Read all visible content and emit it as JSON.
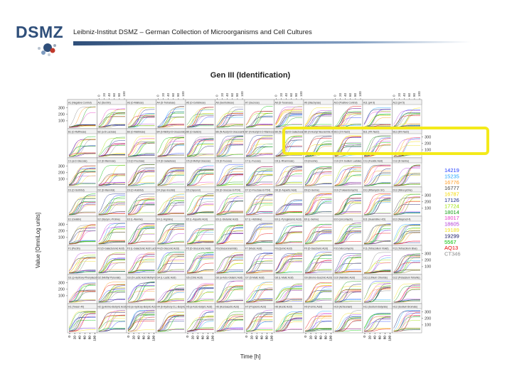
{
  "header": {
    "logo_text": "DSMZ",
    "institute": "Leibniz-Institut DSMZ – German Collection of Microorganisms and Cell Cultures"
  },
  "colors": {
    "logo_blue": "#2f4f7a",
    "logo_red": "#c0392b",
    "rule_blue": "#2f4f7a",
    "highlight": "#f4ea1a"
  },
  "chart_data": {
    "type": "line",
    "title": "Gen III (Identification)",
    "xlabel": "Time [h]",
    "ylabel": "Value [OmniLog units]",
    "x_ticks": [
      "0",
      "20",
      "40",
      "60",
      "80",
      "100"
    ],
    "y_ticks": [
      "100",
      "200",
      "300"
    ],
    "grid": {
      "rows": 8,
      "cols": 12
    },
    "legend_position": "right",
    "legend": [
      {
        "name": "14219",
        "color": "#1f3cff"
      },
      {
        "name": "15235",
        "color": "#1fa6ff"
      },
      {
        "name": "16776",
        "color": "#ff9a1f"
      },
      {
        "name": "16777",
        "color": "#444444"
      },
      {
        "name": "16787",
        "color": "#f5d800"
      },
      {
        "name": "17126",
        "color": "#1a2a8a"
      },
      {
        "name": "17724",
        "color": "#9be000"
      },
      {
        "name": "18014",
        "color": "#18a018"
      },
      {
        "name": "18017",
        "color": "#e63cc8"
      },
      {
        "name": "18605",
        "color": "#b23cd8"
      },
      {
        "name": "19189",
        "color": "#f0e020"
      },
      {
        "name": "19299",
        "color": "#101060"
      },
      {
        "name": "5567",
        "color": "#00c000"
      },
      {
        "name": "AQ13",
        "color": "#e60000"
      },
      {
        "name": "CT346",
        "color": "#8a8a8a"
      }
    ],
    "panel_labels": [
      "A1 (Negative Control)",
      "A2 (Dextrin)",
      "A3 (D-Maltose)",
      "A4 (D-Trehalose)",
      "A5 (D-Cellobiose)",
      "A6 (Gentiobiose)",
      "A7 (Sucrose)",
      "A8 (D-Turanose)",
      "A9 (Stachyose)",
      "A10 (Positive Control)",
      "A11 (pH 6)",
      "A12 (pH 5)",
      "B1 (D-Raffinose)",
      "B2 (a-D-Lactose)",
      "B3 (D-Melibiose)",
      "B4 (b-Methyl-D-Glucoside)",
      "B5 (D-Salicin)",
      "B6 (N-Acetyl-D-Glucosamine)",
      "B7 (N-Acetyl-b-D-Mannosamine)",
      "B8 (N-Acetyl-D-Galactosamine)",
      "B9 (N-Acetyl Neuraminic Acid)",
      "B10 (1% NaCl)",
      "B11 (4% NaCl)",
      "B12 (8% NaCl)",
      "C1 (a-D-Glucose)",
      "C2 (D-Mannose)",
      "C3 (D-Fructose)",
      "C4 (D-Galactose)",
      "C5 (3-Methyl Glucose)",
      "C6 (D-Fucose)",
      "C7 (L-Fucose)",
      "C8 (L-Rhamnose)",
      "C9 (Inosine)",
      "C10 (1% Sodium Lactate)",
      "C11 (Fusidic Acid)",
      "C12 (D-Serine)",
      "D1 (D-Sorbitol)",
      "D2 (D-Mannitol)",
      "D3 (D-Arabitol)",
      "D4 (myo-Inositol)",
      "D5 (Glycerol)",
      "D6 (D-Glucose-6-PO4)",
      "D7 (D-Fructose-6-PO4)",
      "D8 (D-Aspartic Acid)",
      "D9 (D-Serine)",
      "D10 (Troleandomycin)",
      "D11 (Rifamycin SV)",
      "D12 (Minocycline)",
      "E1 (Gelatin)",
      "E2 (Glycyl-L-Proline)",
      "E3 (L-Alanine)",
      "E4 (L-Arginine)",
      "E5 (L-Aspartic Acid)",
      "E6 (L-Glutamic Acid)",
      "E7 (L-Histidine)",
      "E8 (L-Pyroglutamic Acid)",
      "E9 (L-Serine)",
      "E10 (Lincomycin)",
      "E11 (Guanidine HCl)",
      "E12 (Niaproof 4)",
      "F1 (Pectin)",
      "F2 (D-Galacturonic Acid)",
      "F3 (L-Galactonic Acid Lactone)",
      "F4 (D-Gluconic Acid)",
      "F5 (D-Glucuronic Acid)",
      "F6 (Glucuronamide)",
      "F7 (Mucic Acid)",
      "F8 (Quinic Acid)",
      "F9 (D-Saccharic Acid)",
      "F10 (Vancomycin)",
      "F11 (Tetrazolium Violet)",
      "F12 (Tetrazolium Blue)",
      "G1 (p-Hydroxy-Phenylacetic Acid)",
      "G2 (Methyl Pyruvate)",
      "G3 (D-Lactic Acid Methyl Ester)",
      "G4 (L-Lactic Acid)",
      "G5 (Citric Acid)",
      "G6 (a-Keto-Glutaric Acid)",
      "G7 (D-Malic Acid)",
      "G8 (L-Malic Acid)",
      "G9 (Bromo-Succinic Acid)",
      "G10 (Nalidixic Acid)",
      "G11 (Lithium Chloride)",
      "G12 (Potassium Tellurite)",
      "H1 (Tween 40)",
      "H2 (g-Amino-Butryric Acid)",
      "H3 (a-Hydroxy-Butyric Acid)",
      "H4 (b-Hydroxy-D,L-Butyric Acid)",
      "H5 (a-Keto-Butyric Acid)",
      "H6 (Acetoacetic Acid)",
      "H7 (Propionic Acid)",
      "H8 (Acetic Acid)",
      "H9 (Formic Acid)",
      "H10 (Aztreonam)",
      "H11 (Sodium Butyrate)",
      "H12 (Sodium Bromate)"
    ]
  }
}
